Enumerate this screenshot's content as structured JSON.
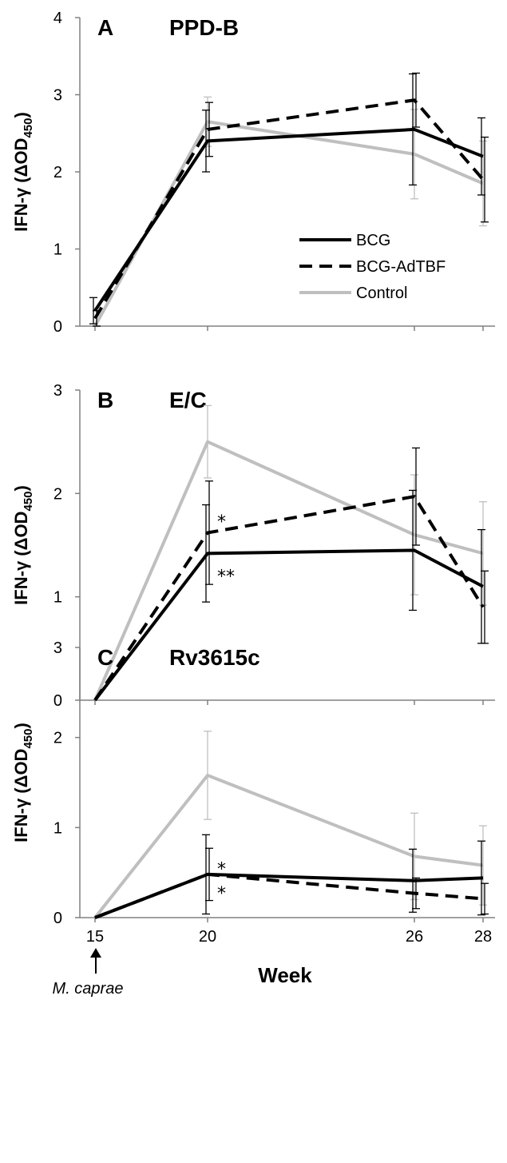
{
  "chart_data": [
    {
      "type": "line",
      "panel_letter": "A",
      "title": "PPD-B",
      "ylabel_main": "IFN-γ (ΔOD",
      "ylabel_sub": "450",
      "ylabel_close": ")",
      "ylim": [
        0,
        4
      ],
      "yticks": [
        "0",
        "1",
        "2",
        "3",
        "4"
      ],
      "x": [
        15,
        20,
        26,
        28
      ],
      "series": [
        {
          "name": "BCG",
          "color": "#000000",
          "dash": "solid",
          "values": [
            0.2,
            2.4,
            2.55,
            2.2
          ],
          "err": [
            0.17,
            0.4,
            0.72,
            0.5
          ]
        },
        {
          "name": "BCG-AdTBF",
          "color": "#000000",
          "dash": "dashed",
          "values": [
            0.1,
            2.55,
            2.93,
            1.9
          ],
          "err": [
            0.1,
            0.35,
            0.35,
            0.55
          ]
        },
        {
          "name": "Control",
          "color": "#bfbfbf",
          "dash": "solid",
          "values": [
            0.0,
            2.65,
            2.23,
            1.85
          ],
          "err": [
            0.0,
            0.32,
            0.58,
            0.55
          ]
        }
      ],
      "legend": {
        "position": "center-right"
      },
      "stars": []
    },
    {
      "type": "line",
      "panel_letter": "B",
      "title": "E/C",
      "ylabel_main": "IFN-γ (ΔOD",
      "ylabel_sub": "450",
      "ylabel_close": ")",
      "ylim": [
        0,
        3
      ],
      "yticks": [
        "0",
        "1",
        "2",
        "3"
      ],
      "x": [
        15,
        20,
        26,
        28
      ],
      "series": [
        {
          "name": "BCG",
          "color": "#000000",
          "dash": "solid",
          "values": [
            0.0,
            1.42,
            1.45,
            1.1
          ],
          "err": [
            0.0,
            0.47,
            0.58,
            0.55
          ]
        },
        {
          "name": "BCG-AdTBF",
          "color": "#000000",
          "dash": "dashed",
          "values": [
            0.0,
            1.62,
            1.97,
            0.9
          ],
          "err": [
            0.0,
            0.5,
            0.47,
            0.35
          ]
        },
        {
          "name": "Control",
          "color": "#bfbfbf",
          "dash": "solid",
          "values": [
            0.0,
            2.5,
            1.6,
            1.42
          ],
          "err": [
            0.0,
            0.35,
            0.58,
            0.5
          ]
        }
      ],
      "stars": [
        {
          "text": "*",
          "x": 20,
          "y": 1.78
        },
        {
          "text": "**",
          "x": 20,
          "y": 1.25
        }
      ]
    },
    {
      "type": "line",
      "panel_letter": "C",
      "title": "Rv3615c",
      "ylabel_main": "IFN-γ (ΔOD",
      "ylabel_sub": "450",
      "ylabel_close": ")",
      "ylim": [
        0,
        3
      ],
      "yticks": [
        "0",
        "1",
        "2",
        "3"
      ],
      "x": [
        15,
        20,
        26,
        28
      ],
      "xticks": [
        "15",
        "20",
        "26",
        "28"
      ],
      "xlabel": "Week",
      "series": [
        {
          "name": "BCG",
          "color": "#000000",
          "dash": "solid",
          "values": [
            0.0,
            0.48,
            0.41,
            0.44
          ],
          "err": [
            0.0,
            0.44,
            0.35,
            0.41
          ]
        },
        {
          "name": "BCG-AdTBF",
          "color": "#000000",
          "dash": "dashed",
          "values": [
            0.0,
            0.48,
            0.27,
            0.21
          ],
          "err": [
            0.0,
            0.29,
            0.17,
            0.17
          ]
        },
        {
          "name": "Control",
          "color": "#bfbfbf",
          "dash": "solid",
          "values": [
            0.0,
            1.58,
            0.68,
            0.58
          ],
          "err": [
            0.0,
            0.49,
            0.48,
            0.44
          ]
        }
      ],
      "stars": [
        {
          "text": "*",
          "x": 20,
          "y": 0.6
        },
        {
          "text": "*",
          "x": 20,
          "y": 0.33
        }
      ],
      "annotation": "M. caprae"
    }
  ]
}
